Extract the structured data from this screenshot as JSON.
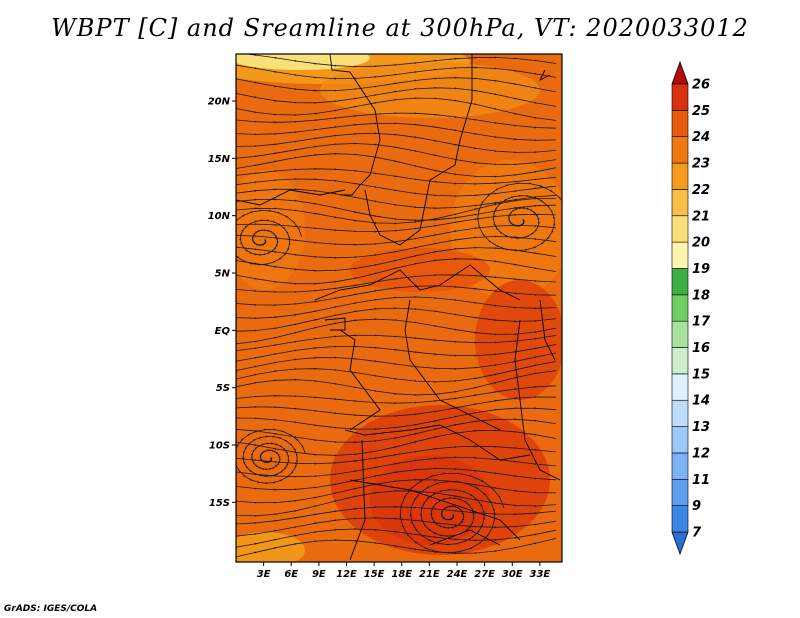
{
  "title": "WBPT [C] and Sreamline at 300hPa, VT: 2020033012",
  "footer": "GrADS: IGES/COLA",
  "map": {
    "lat_labels": [
      {
        "lat": 20,
        "text": "20N"
      },
      {
        "lat": 15,
        "text": "15N"
      },
      {
        "lat": 10,
        "text": "10N"
      },
      {
        "lat": 5,
        "text": "5N"
      },
      {
        "lat": 0,
        "text": "EQ"
      },
      {
        "lat": -5,
        "text": "5S"
      },
      {
        "lat": -10,
        "text": "10S"
      },
      {
        "lat": -15,
        "text": "15S"
      }
    ],
    "lon_labels": [
      {
        "lon": 3,
        "text": "3E"
      },
      {
        "lon": 6,
        "text": "6E"
      },
      {
        "lon": 9,
        "text": "9E"
      },
      {
        "lon": 12,
        "text": "12E"
      },
      {
        "lon": 15,
        "text": "15E"
      },
      {
        "lon": 18,
        "text": "18E"
      },
      {
        "lon": 21,
        "text": "21E"
      },
      {
        "lon": 24,
        "text": "24E"
      },
      {
        "lon": 27,
        "text": "27E"
      },
      {
        "lon": 30,
        "text": "30E"
      },
      {
        "lon": 33,
        "text": "33E"
      }
    ]
  },
  "colorbar": {
    "levels": [
      {
        "label": "",
        "color": "#2a6fd6"
      },
      {
        "label": "7",
        "color": "#3b86e6"
      },
      {
        "label": "9",
        "color": "#5c9df0"
      },
      {
        "label": "11",
        "color": "#7cb3f5"
      },
      {
        "label": "12",
        "color": "#9ccaf8"
      },
      {
        "label": "13",
        "color": "#bcdcfa"
      },
      {
        "label": "14",
        "color": "#ddf0fc"
      },
      {
        "label": "15",
        "color": "#cdeec8"
      },
      {
        "label": "16",
        "color": "#a8e29d"
      },
      {
        "label": "17",
        "color": "#6fcf63"
      },
      {
        "label": "18",
        "color": "#3cb043"
      },
      {
        "label": "19",
        "color": "#fdf5b0"
      },
      {
        "label": "20",
        "color": "#fbe07a"
      },
      {
        "label": "21",
        "color": "#f8c04a"
      },
      {
        "label": "22",
        "color": "#f39b1c"
      },
      {
        "label": "23",
        "color": "#ef7a10"
      },
      {
        "label": "24",
        "color": "#ea5a0c"
      },
      {
        "label": "25",
        "color": "#d6300c"
      },
      {
        "label": "26",
        "color": "#b40c0a"
      }
    ]
  }
}
